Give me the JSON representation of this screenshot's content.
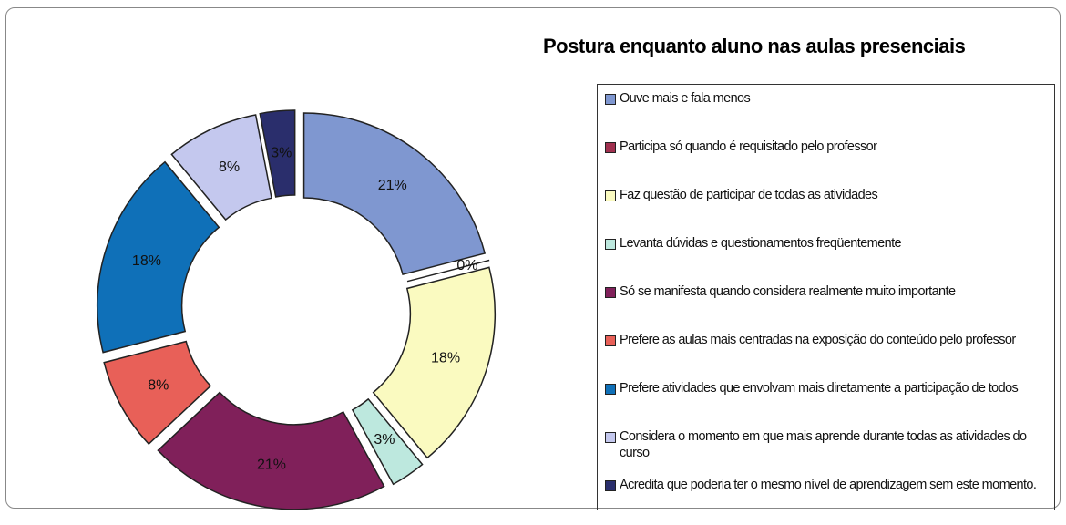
{
  "chart_data": {
    "type": "donut",
    "title": "Postura enquanto aluno nas aulas presenciais",
    "categories": [
      "Ouve mais e fala menos",
      "Participa só quando é requisitado pelo professor",
      "Faz questão de participar de todas as atividades",
      "Levanta dúvidas e questionamentos freqüentemente",
      "Só se manifesta quando considera realmente muito importante",
      "Prefere as aulas mais centradas na exposição do conteúdo pelo professor",
      "Prefere atividades  que envolvam mais diretamente a participação de todos",
      "Considera o momento em que mais aprende durante todas as atividades do curso",
      "Acredita que poderia ter o mesmo nível de aprendizagem sem este momento."
    ],
    "values": [
      21,
      0,
      18,
      3,
      21,
      8,
      18,
      8,
      3
    ],
    "value_labels": [
      "21%",
      "0%",
      "18%",
      "3%",
      "21%",
      "8%",
      "18%",
      "8%",
      "3%"
    ],
    "colors": [
      "#7f97d0",
      "#a0304f",
      "#fafac0",
      "#bde8de",
      "#80205a",
      "#e86058",
      "#0f70b8",
      "#c4c8ee",
      "#2a2e6c"
    ],
    "legend": "right"
  }
}
